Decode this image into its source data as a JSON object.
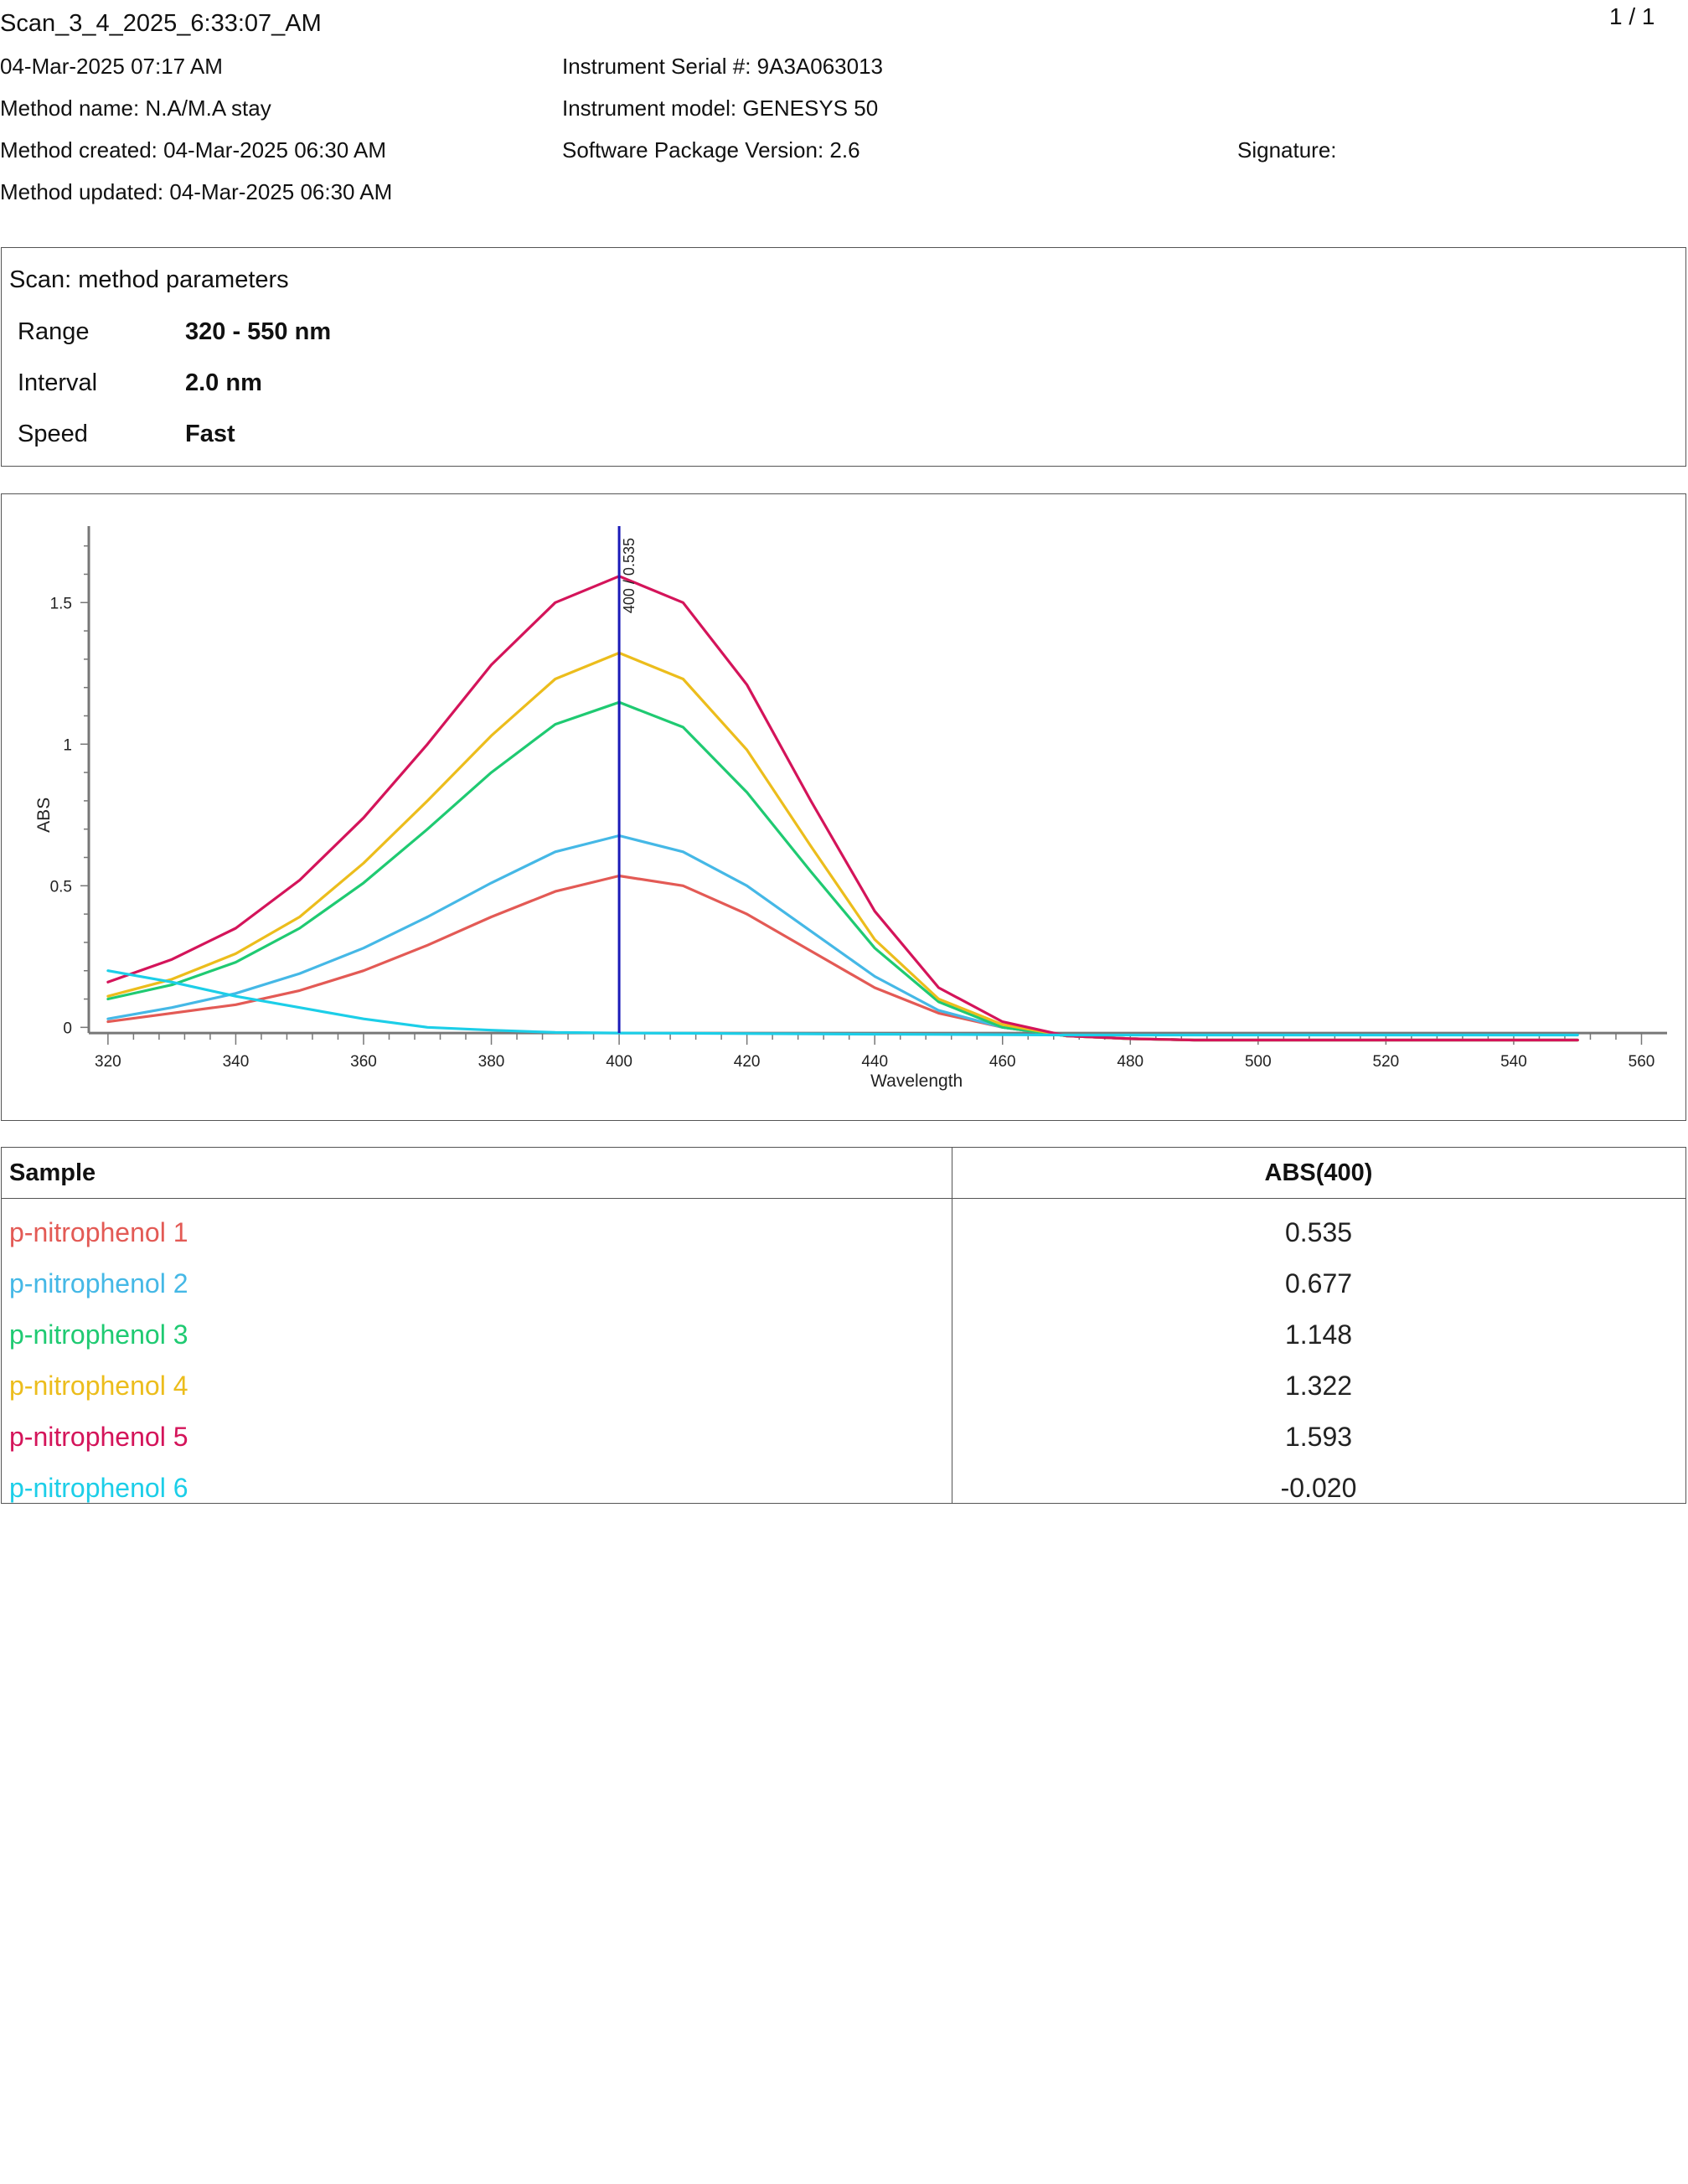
{
  "header": {
    "title": "Scan_3_4_2025_6:33:07_AM",
    "page_indicator": "1 / 1",
    "datetime": "04-Mar-2025 07:17 AM",
    "method_name": "Method name: N.A/M.A stay",
    "method_created": "Method created: 04-Mar-2025 06:30 AM",
    "method_updated": "Method updated: 04-Mar-2025 06:30 AM",
    "instrument_serial": "Instrument Serial #: 9A3A063013",
    "instrument_model": "Instrument model: GENESYS 50",
    "software_version": "Software Package Version: 2.6",
    "signature": "Signature:"
  },
  "method_parameters": {
    "title": "Scan: method parameters",
    "rows": [
      {
        "label": "Range",
        "value": "320 - 550 nm"
      },
      {
        "label": "Interval",
        "value": "2.0 nm"
      },
      {
        "label": "Speed",
        "value": "Fast"
      }
    ]
  },
  "chart_data": {
    "type": "line",
    "xlabel": "Wavelength",
    "ylabel": "ABS",
    "xlim": [
      317,
      564
    ],
    "ylim": [
      -0.07,
      1.77
    ],
    "x_ticks": [
      "320",
      "340",
      "360",
      "380",
      "400",
      "420",
      "440",
      "460",
      "480",
      "500",
      "520",
      "540",
      "560"
    ],
    "x_tick_values": [
      320,
      340,
      360,
      380,
      400,
      420,
      440,
      460,
      480,
      500,
      520,
      540,
      560
    ],
    "y_ticks": [
      "0",
      "0.5",
      "1",
      "1.5"
    ],
    "y_tick_values": [
      0,
      0.5,
      1,
      1.5
    ],
    "cursor": {
      "x": 400,
      "label": "400 / 0.535",
      "color": "#1a1ab8"
    },
    "x": [
      320,
      330,
      340,
      350,
      360,
      370,
      380,
      390,
      400,
      410,
      420,
      430,
      440,
      450,
      460,
      470,
      480,
      490,
      500,
      510,
      520,
      530,
      540,
      550
    ],
    "series": [
      {
        "name": "p-nitrophenol 1",
        "color": "#e35a55",
        "values": [
          0.02,
          0.05,
          0.08,
          0.13,
          0.2,
          0.29,
          0.39,
          0.48,
          0.535,
          0.5,
          0.4,
          0.27,
          0.14,
          0.05,
          0.0,
          -0.03,
          -0.04,
          -0.045,
          -0.045,
          -0.045,
          -0.045,
          -0.045,
          -0.045,
          -0.045
        ]
      },
      {
        "name": "p-nitrophenol 2",
        "color": "#45b8e6",
        "values": [
          0.03,
          0.07,
          0.12,
          0.19,
          0.28,
          0.39,
          0.51,
          0.62,
          0.677,
          0.62,
          0.5,
          0.34,
          0.18,
          0.06,
          0.0,
          -0.03,
          -0.04,
          -0.045,
          -0.045,
          -0.045,
          -0.045,
          -0.045,
          -0.045,
          -0.045
        ]
      },
      {
        "name": "p-nitrophenol 3",
        "color": "#1fca72",
        "values": [
          0.1,
          0.15,
          0.23,
          0.35,
          0.51,
          0.7,
          0.9,
          1.07,
          1.148,
          1.06,
          0.83,
          0.55,
          0.28,
          0.09,
          0.0,
          -0.03,
          -0.04,
          -0.045,
          -0.045,
          -0.045,
          -0.045,
          -0.045,
          -0.045,
          -0.045
        ]
      },
      {
        "name": "p-nitrophenol 4",
        "color": "#ecbd1c",
        "values": [
          0.11,
          0.17,
          0.26,
          0.39,
          0.58,
          0.8,
          1.03,
          1.23,
          1.322,
          1.23,
          0.98,
          0.64,
          0.31,
          0.1,
          0.01,
          -0.03,
          -0.04,
          -0.045,
          -0.045,
          -0.045,
          -0.045,
          -0.045,
          -0.045,
          -0.045
        ]
      },
      {
        "name": "p-nitrophenol 5",
        "color": "#d4145a",
        "values": [
          0.16,
          0.24,
          0.35,
          0.52,
          0.74,
          1.0,
          1.28,
          1.5,
          1.593,
          1.5,
          1.21,
          0.8,
          0.41,
          0.14,
          0.02,
          -0.03,
          -0.04,
          -0.045,
          -0.045,
          -0.045,
          -0.045,
          -0.045,
          -0.045,
          -0.045
        ]
      },
      {
        "name": "p-nitrophenol 6",
        "color": "#1ccee8",
        "values": [
          0.2,
          0.16,
          0.11,
          0.07,
          0.03,
          0.0,
          -0.01,
          -0.018,
          -0.02,
          -0.021,
          -0.022,
          -0.023,
          -0.024,
          -0.025,
          -0.026,
          -0.027,
          -0.027,
          -0.027,
          -0.027,
          -0.027,
          -0.027,
          -0.027,
          -0.027,
          -0.027
        ]
      }
    ]
  },
  "results_table": {
    "headers": [
      "Sample",
      "ABS(400)"
    ],
    "rows": [
      {
        "sample": "p-nitrophenol 1",
        "value": "0.535",
        "color": "#e35a55"
      },
      {
        "sample": "p-nitrophenol 2",
        "value": "0.677",
        "color": "#45b8e6"
      },
      {
        "sample": "p-nitrophenol 3",
        "value": "1.148",
        "color": "#1fca72"
      },
      {
        "sample": "p-nitrophenol 4",
        "value": "1.322",
        "color": "#ecbd1c"
      },
      {
        "sample": "p-nitrophenol 5",
        "value": "1.593",
        "color": "#d4145a"
      },
      {
        "sample": "p-nitrophenol 6",
        "value": "-0.020",
        "color": "#1ccee8"
      }
    ]
  }
}
